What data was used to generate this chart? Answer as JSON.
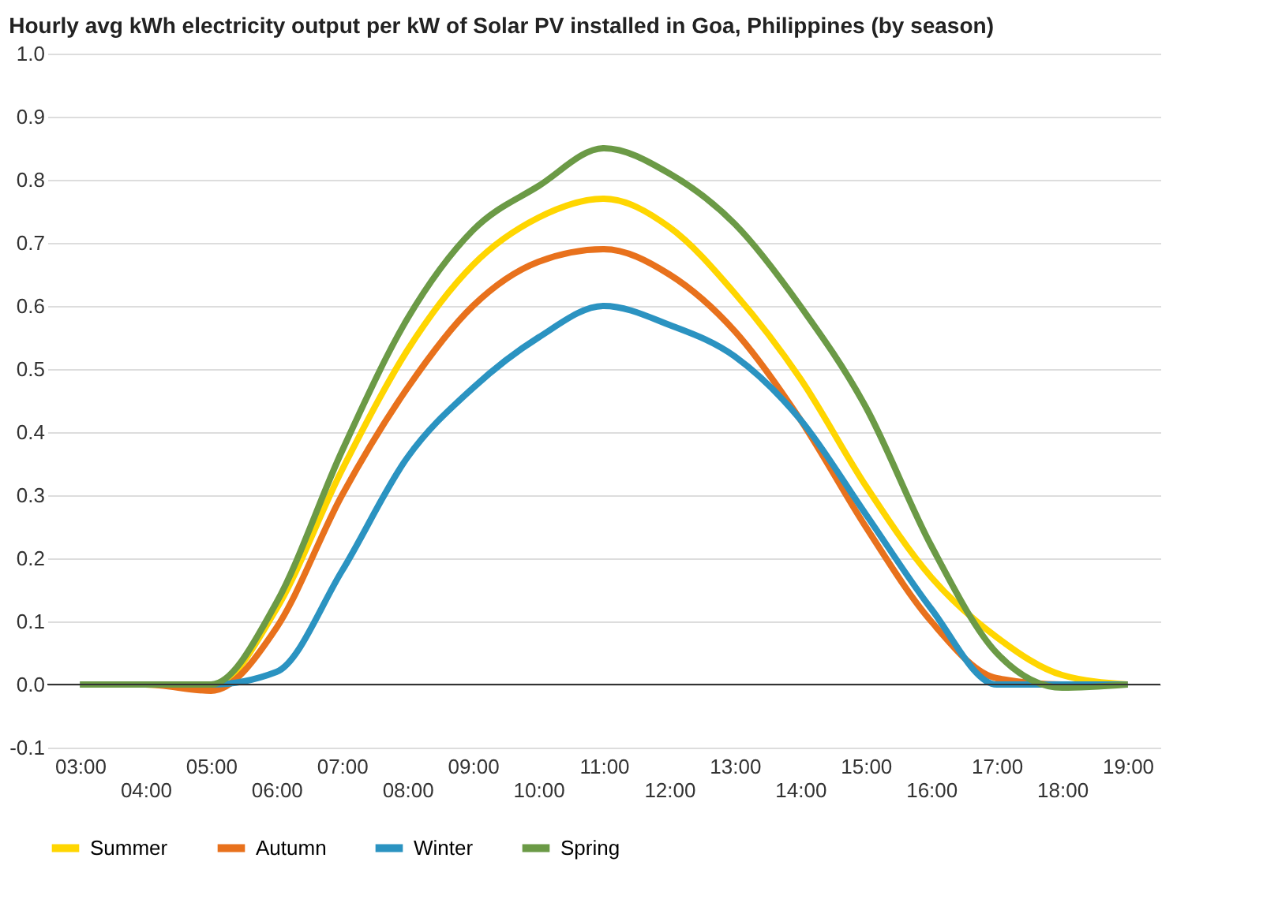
{
  "chart_data": {
    "type": "line",
    "title": "Hourly avg kWh electricity output per kW of Solar PV installed in Goa, Philippines (by season)",
    "categories": [
      "03:00",
      "04:00",
      "05:00",
      "06:00",
      "07:00",
      "08:00",
      "09:00",
      "10:00",
      "11:00",
      "12:00",
      "13:00",
      "14:00",
      "15:00",
      "16:00",
      "17:00",
      "18:00",
      "19:00"
    ],
    "series": [
      {
        "name": "Summer",
        "color": "#ffd600",
        "values": [
          0,
          0,
          -0.005,
          0.12,
          0.34,
          0.53,
          0.665,
          0.74,
          0.77,
          0.725,
          0.62,
          0.485,
          0.315,
          0.17,
          0.075,
          0.015,
          0
        ]
      },
      {
        "name": "Autumn",
        "color": "#e8711c",
        "values": [
          0,
          0,
          -0.01,
          0.09,
          0.3,
          0.47,
          0.6,
          0.67,
          0.69,
          0.65,
          0.56,
          0.42,
          0.25,
          0.1,
          0.01,
          0,
          0
        ]
      },
      {
        "name": "Winter",
        "color": "#2b93c1",
        "values": [
          0,
          0,
          0,
          0.02,
          0.18,
          0.36,
          0.47,
          0.55,
          0.6,
          0.57,
          0.52,
          0.42,
          0.27,
          0.12,
          0,
          0,
          0
        ]
      },
      {
        "name": "Spring",
        "color": "#6b9a46",
        "values": [
          0,
          0,
          0,
          0.13,
          0.37,
          0.58,
          0.72,
          0.79,
          0.85,
          0.81,
          0.73,
          0.6,
          0.44,
          0.22,
          0.05,
          -0.005,
          0
        ]
      }
    ],
    "ylim": [
      -0.1,
      1.0
    ],
    "yticks": [
      -0.1,
      {
        "value": 0,
        "label": "0.0"
      },
      0.1,
      0.2,
      0.3,
      0.4,
      0.5,
      0.6,
      0.7,
      0.8,
      0.9,
      {
        "value": 1,
        "label": "1.0"
      }
    ],
    "ref_lines": [
      {
        "axis": "y",
        "value": 0,
        "color": "#333333"
      }
    ],
    "grid": "y",
    "legend": "bottom",
    "marker": "none",
    "line_style": "solid"
  }
}
